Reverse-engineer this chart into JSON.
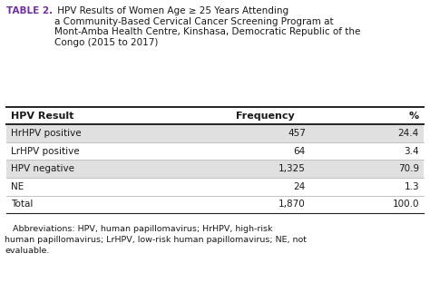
{
  "title_bold": "TABLE 2.",
  "title_rest": " HPV Results of Women Age ≥ 25 Years Attending\na Community-Based Cervical Cancer Screening Program at\nMont-Amba Health Centre, Kinshasa, Democratic Republic of the\nCongo (2015 to 2017)",
  "col_headers": [
    "HPV Result",
    "Frequency",
    "%"
  ],
  "rows": [
    [
      "HrHPV positive",
      "457",
      "24.4"
    ],
    [
      "LrHPV positive",
      "64",
      "3.4"
    ],
    [
      "HPV negative",
      "1,325",
      "70.9"
    ],
    [
      "NE",
      "24",
      "1.3"
    ],
    [
      "Total",
      "1,870",
      "100.0"
    ]
  ],
  "row_shading": [
    true,
    false,
    true,
    false,
    false
  ],
  "shading_color": "#e0e0e0",
  "white_color": "#ffffff",
  "abbreviations": "   Abbreviations: HPV, human papillomavirus; HrHPV, high-risk\nhuman papillomavirus; LrHPV, low-risk human papillomavirus; NE, not\nevaluable.",
  "title_color": "#7030a0",
  "border_color": "#222222",
  "text_color": "#1a1a1a",
  "background_color": "#ffffff",
  "fig_width": 4.74,
  "fig_height": 3.33,
  "dpi": 100
}
